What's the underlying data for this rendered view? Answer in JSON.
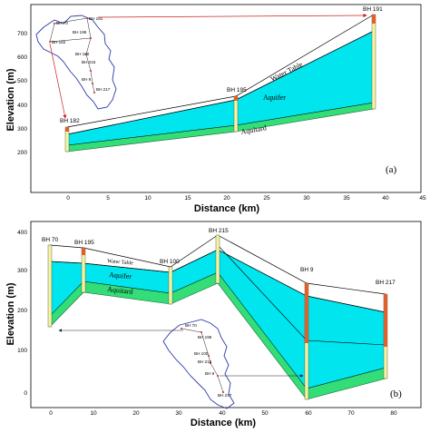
{
  "panel_a": {
    "tag": "(a)",
    "xlabel": "Distance (km)",
    "ylabel": "Elevation (m)",
    "x_ticks": [
      "0",
      "5",
      "10",
      "15",
      "20",
      "25",
      "30",
      "35",
      "40",
      "45"
    ],
    "y_ticks": [
      "200",
      "300",
      "400",
      "500",
      "600",
      "700"
    ],
    "boreholes": [
      "BH 182",
      "BH 195",
      "BH 191"
    ],
    "layers": {
      "water_table": "Water Table",
      "aquifer": "Aquifer",
      "aquitard": "Aquitard"
    },
    "map_labels": [
      "BH 70",
      "BH 181",
      "BH 182",
      "BH 195",
      "BH 100",
      "BH 215",
      "BH 9",
      "BH 217"
    ]
  },
  "panel_b": {
    "tag": "(b)",
    "xlabel": "Distance (km)",
    "ylabel": "Elevation (m)",
    "x_ticks": [
      "0",
      "10",
      "20",
      "30",
      "40",
      "50",
      "60",
      "70",
      "80"
    ],
    "y_ticks": [
      "0",
      "100",
      "200",
      "300",
      "400"
    ],
    "boreholes": [
      "BH 70",
      "BH 195",
      "BH 100",
      "BH 215",
      "BH 9",
      "BH 217"
    ],
    "layers": {
      "water_table": "Water Table",
      "aquifer": "Aquifer",
      "aquitard": "Aquitard"
    },
    "map_labels": [
      "BH 70",
      "BH 195",
      "BH 100",
      "BH 215",
      "BH 9",
      "BH 217"
    ]
  },
  "colors": {
    "aquifer": "#00e5ee",
    "aquitard": "#33dd77",
    "well": "#f4f4a0",
    "well_top": "#e0602a",
    "arrow_a": "#cc2020",
    "map_outline": "#2a3aa8"
  }
}
